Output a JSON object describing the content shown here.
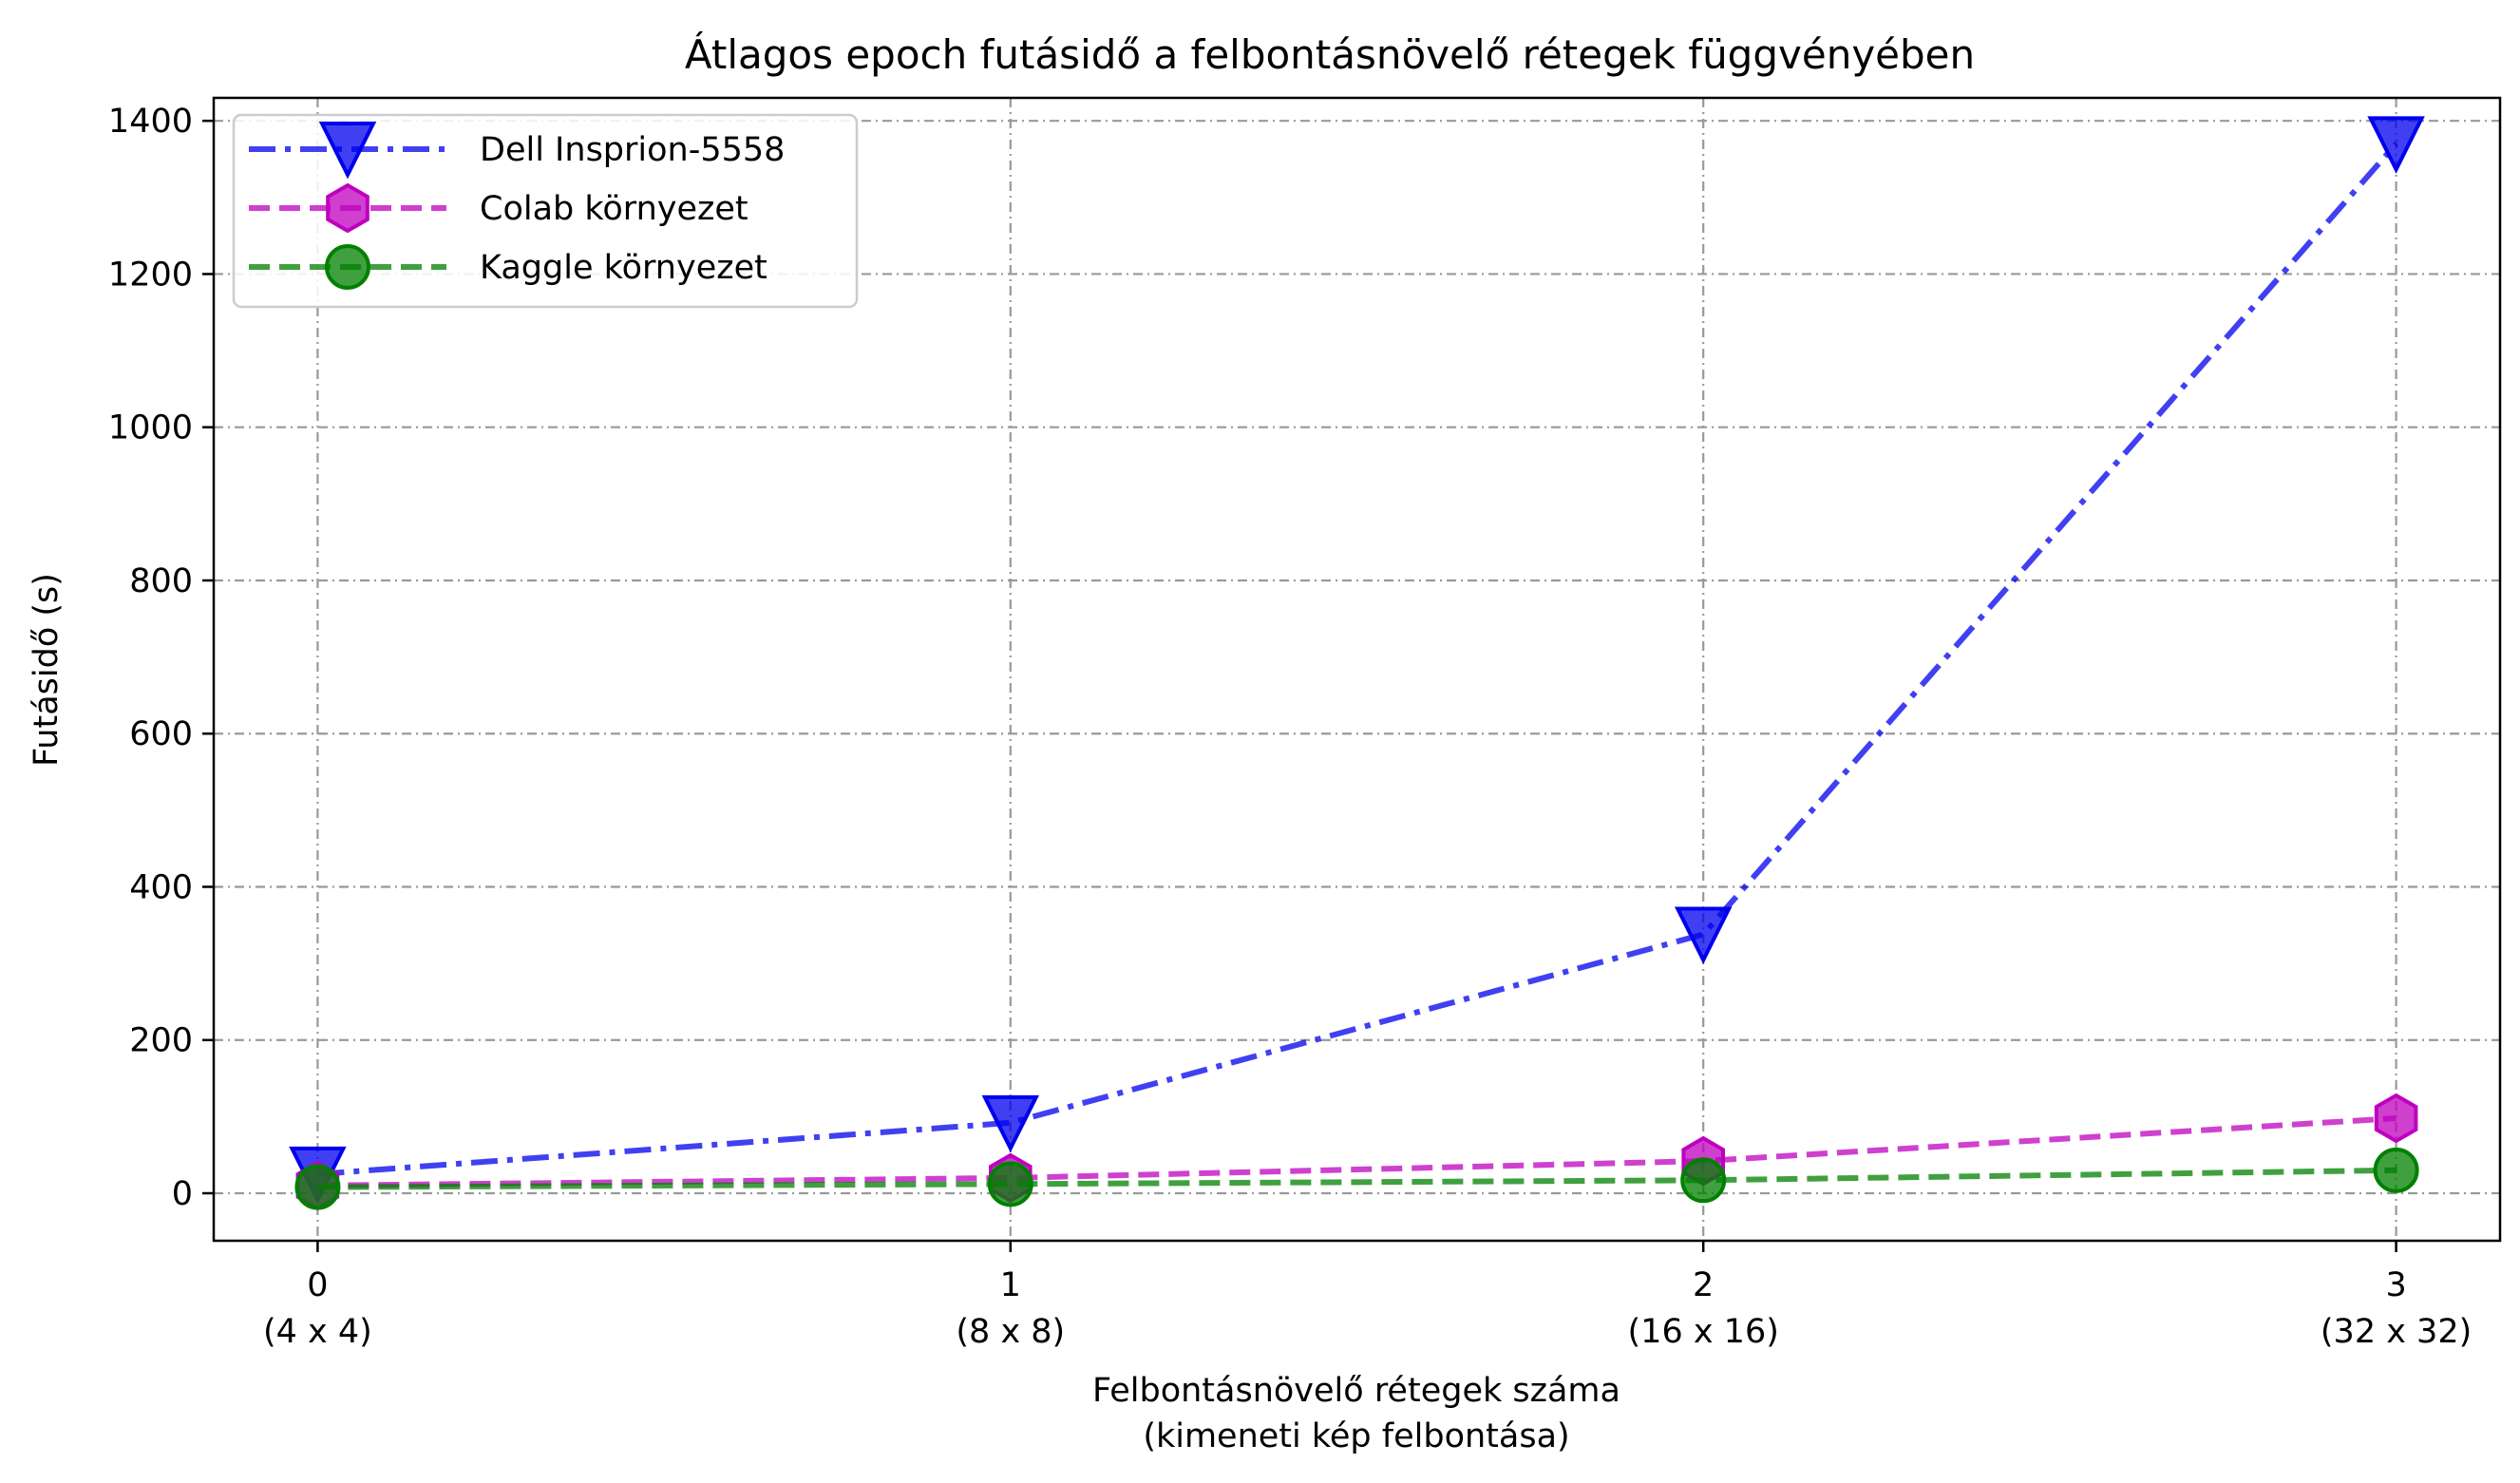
{
  "chart_data": {
    "type": "line",
    "title": "Átlagos epoch futásidő a felbontásnövelő rétegek függvényében",
    "xlabel": [
      "Felbontásnövelő rétegek száma",
      "(kimeneti kép felbontása)"
    ],
    "ylabel": "Futásidő (s)",
    "x": [
      0,
      1,
      2,
      3
    ],
    "x_tick_labels": [
      [
        "0",
        "(4 x 4)"
      ],
      [
        "1",
        "(8 x 8)"
      ],
      [
        "2",
        "(16 x 16)"
      ],
      [
        "3",
        "(32 x 32)"
      ]
    ],
    "y_ticks": [
      "0",
      "200",
      "400",
      "600",
      "800",
      "1000",
      "1200",
      "1400"
    ],
    "ylim": [
      -62,
      1430
    ],
    "xlim": [
      -0.15,
      3.15
    ],
    "grid": true,
    "legend_position": "upper-left",
    "series": [
      {
        "name": "Dell Insprion-5558",
        "values": [
          25,
          92,
          338,
          1370
        ],
        "color": "#0000ee",
        "line_style": "dash-dot",
        "marker": "triangle-down"
      },
      {
        "name": "Colab környezet",
        "values": [
          10,
          20,
          42,
          98
        ],
        "color": "#bf00bf",
        "line_style": "dashed",
        "marker": "hexagon"
      },
      {
        "name": "Kaggle környezet",
        "values": [
          8,
          12,
          17,
          30
        ],
        "color": "#008000",
        "line_style": "dashed",
        "marker": "circle"
      }
    ]
  }
}
